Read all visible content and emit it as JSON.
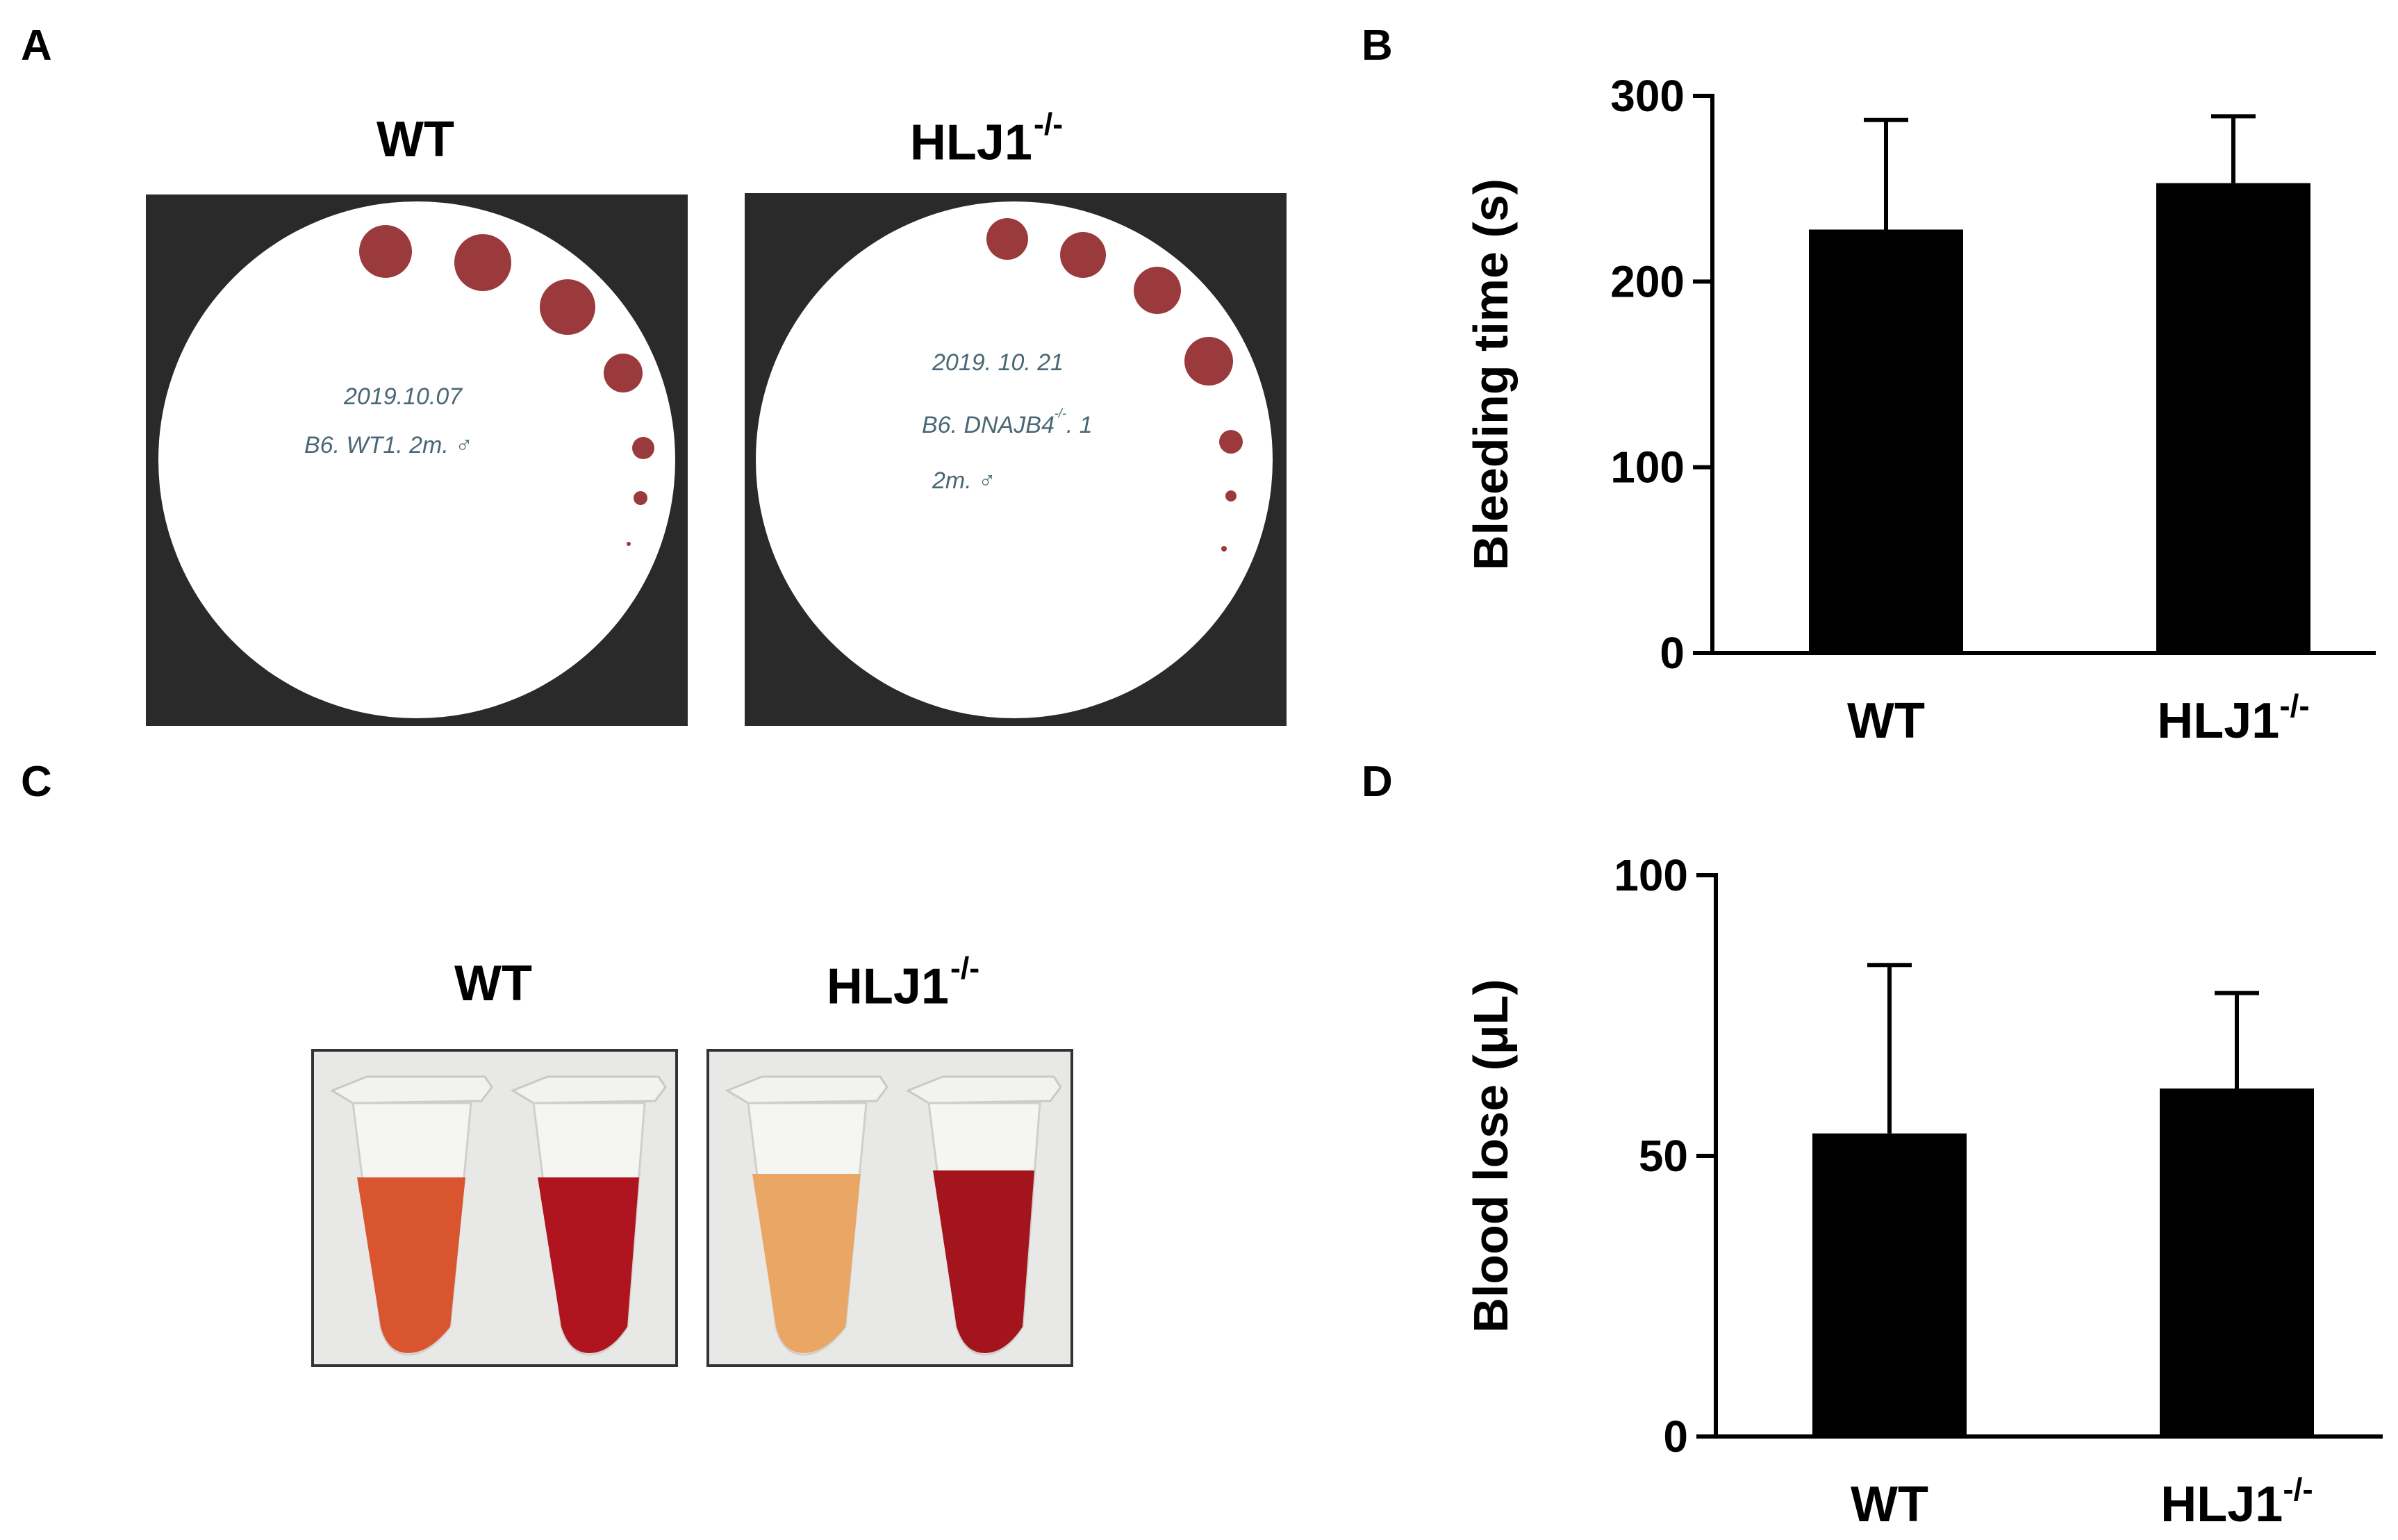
{
  "panels": {
    "a": {
      "letter": "A",
      "photos": [
        {
          "title": "WT",
          "note_lines": [
            "2019.10.07",
            "B6. WT1. 2m. ♂"
          ]
        },
        {
          "title": "HLJ1",
          "title_sup": "-/-",
          "note_lines": [
            "2019. 10. 21",
            "B6. DNAJB4",
            "2m. ♂"
          ],
          "note_sup": "-/-",
          "note_suffix": ". 1"
        }
      ]
    },
    "b": {
      "letter": "B"
    },
    "c": {
      "letter": "C",
      "photos": [
        {
          "title": "WT"
        },
        {
          "title": "HLJ1",
          "title_sup": "-/-"
        }
      ]
    },
    "d": {
      "letter": "D"
    }
  },
  "colors": {
    "blood_spot": "#9b3a3c",
    "photo_background": "#2a2a2a",
    "bar_fill": "#000000",
    "tube_wt_1": "#d9552f",
    "tube_wt_2": "#b0141e",
    "tube_ko_1": "#eaa664",
    "tube_ko_2": "#a3141c"
  },
  "chart_data": [
    {
      "panel": "B",
      "type": "bar",
      "categories": [
        "WT",
        "HLJ1"
      ],
      "category_sups": [
        "",
        "-/-"
      ],
      "values": [
        228,
        253
      ],
      "errors": [
        59,
        36
      ],
      "ylabel": "Bleeding time (s)",
      "ylim": [
        0,
        300
      ],
      "yticks": [
        0,
        100,
        200,
        300
      ],
      "grid": false,
      "legend": "none"
    },
    {
      "panel": "D",
      "type": "bar",
      "categories": [
        "WT",
        "HLJ1"
      ],
      "category_sups": [
        "",
        "-/-"
      ],
      "values": [
        54,
        62
      ],
      "errors": [
        30,
        17
      ],
      "ylabel": "Blood lose (μL)",
      "ylim": [
        0,
        100
      ],
      "yticks": [
        0,
        50,
        100
      ],
      "grid": false,
      "legend": "none"
    }
  ]
}
